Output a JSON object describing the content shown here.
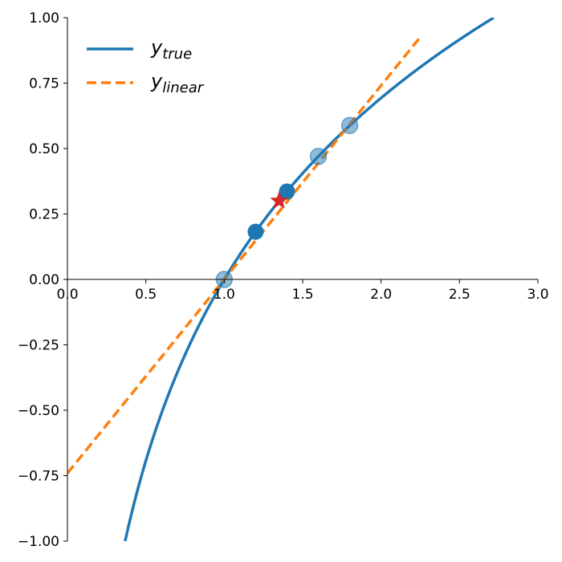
{
  "chart_data": {
    "type": "line",
    "title": "",
    "xlabel": "",
    "ylabel": "",
    "xlim": [
      0,
      3
    ],
    "ylim": [
      -1,
      1
    ],
    "x_ticks": [
      0.0,
      0.5,
      1.0,
      1.5,
      2.0,
      2.5,
      3.0
    ],
    "x_tick_labels": [
      "0.0",
      "0.5",
      "1.0",
      "1.5",
      "2.0",
      "2.5",
      "3.0"
    ],
    "y_ticks": [
      1.0,
      0.75,
      0.5,
      0.25,
      0.0,
      -0.25,
      -0.5,
      -0.75,
      -1.0
    ],
    "y_tick_labels": [
      "1.00",
      "0.75",
      "0.50",
      "0.25",
      "0.00",
      "−0.25",
      "−0.50",
      "−0.75",
      "−1.00"
    ],
    "grid": false,
    "legend_position": "top-left",
    "spines": "centered-at-origin",
    "series": [
      {
        "name_base": "y",
        "name_sub": "true",
        "style": "solid",
        "color": "#1f77b4",
        "function": "ln(x)",
        "x_range": [
          0.3679,
          2.7183
        ]
      },
      {
        "name_base": "y",
        "name_sub": "linear",
        "style": "dashed",
        "color": "#ff7f0e",
        "function": "0.7407*x - 0.7407",
        "x_range": [
          0,
          2.25
        ]
      }
    ],
    "points_faded": [
      {
        "x": 1.0,
        "y": 0.0
      },
      {
        "x": 1.6,
        "y": 0.47
      },
      {
        "x": 1.8,
        "y": 0.588
      }
    ],
    "points_solid": [
      {
        "x": 1.2,
        "y": 0.182
      },
      {
        "x": 1.4,
        "y": 0.336
      }
    ],
    "marker_star": {
      "x": 1.35,
      "y": 0.3
    },
    "colors": {
      "true": "#1f77b4",
      "linear": "#ff7f0e",
      "star": "#d62728",
      "faded_point": "#1f77b4"
    }
  }
}
